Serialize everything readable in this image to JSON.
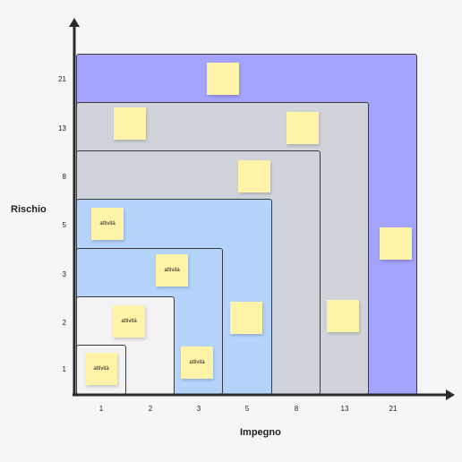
{
  "axes": {
    "x_title": "Impegno",
    "y_title": "Rischio",
    "x_ticks": [
      "1",
      "2",
      "3",
      "5",
      "8",
      "13",
      "21"
    ],
    "y_ticks": [
      "21",
      "13",
      "8",
      "5",
      "3",
      "2",
      "1"
    ]
  },
  "zones": [
    {
      "level": "21",
      "color": "#a4a4ff"
    },
    {
      "level": "13",
      "color": "#d0d4da"
    },
    {
      "level": "8",
      "color": "#d0d4da"
    },
    {
      "level": "5",
      "color": "#b5d4fb"
    },
    {
      "level": "3",
      "color": "#b5d4fb"
    },
    {
      "level": "2",
      "color": "#f2f2f4"
    },
    {
      "level": "1",
      "color": "#f2f2f4"
    }
  ],
  "notes": [
    {
      "id": "note-1",
      "text": ""
    },
    {
      "id": "note-2",
      "text": ""
    },
    {
      "id": "note-3",
      "text": ""
    },
    {
      "id": "note-4",
      "text": ""
    },
    {
      "id": "note-5",
      "text": "attività"
    },
    {
      "id": "note-6",
      "text": "attività"
    },
    {
      "id": "note-7",
      "text": "attività"
    },
    {
      "id": "note-8",
      "text": ""
    },
    {
      "id": "note-9",
      "text": ""
    },
    {
      "id": "note-10",
      "text": ""
    },
    {
      "id": "note-11",
      "text": "attività"
    },
    {
      "id": "note-12",
      "text": "attività"
    }
  ],
  "colors": {
    "axis": "#2a2a2a",
    "note": "#fff3a8"
  }
}
